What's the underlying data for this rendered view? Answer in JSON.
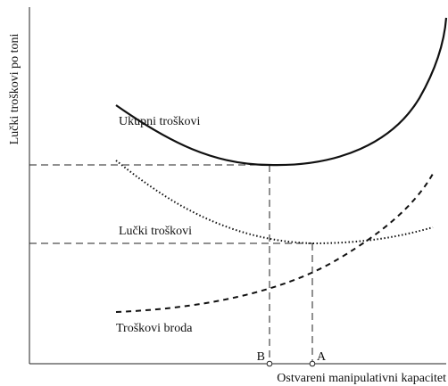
{
  "axes": {
    "y_label": "Lučki troškovi po toni",
    "x_label": "Ostvareni manipulativni kapacitet"
  },
  "curves": [
    {
      "label": "Ukupni troškovi"
    },
    {
      "label": "Lučki troškovi"
    },
    {
      "label": "Troškovi broda"
    }
  ],
  "points": [
    {
      "label": "B"
    },
    {
      "label": "A"
    }
  ]
}
